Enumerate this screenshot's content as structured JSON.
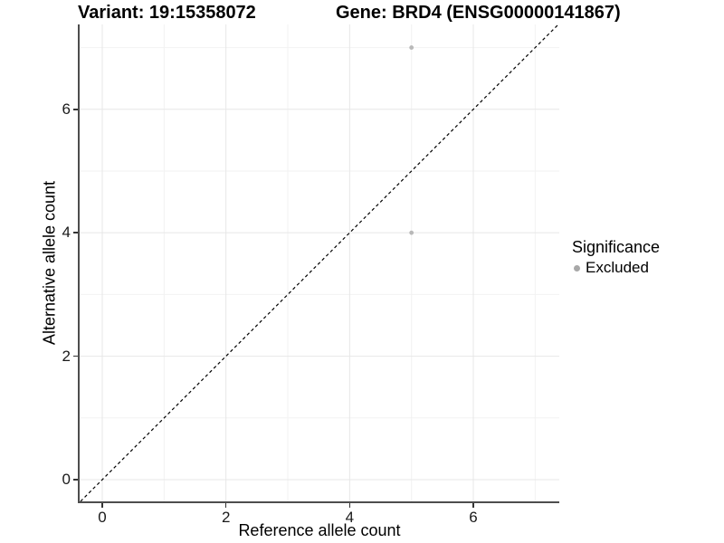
{
  "titles": {
    "variant": "Variant: 19:15358072",
    "gene": "Gene: BRD4 (ENSG00000141867)"
  },
  "chart_data": {
    "type": "scatter",
    "title_left": "Variant: 19:15358072",
    "title_right": "Gene: BRD4 (ENSG00000141867)",
    "xlabel": "Reference allele count",
    "ylabel": "Alternative allele count",
    "xlim": [
      -0.366,
      7.39
    ],
    "ylim": [
      -0.352,
      7.375
    ],
    "x_major_ticks": [
      0,
      2,
      4,
      6
    ],
    "y_major_ticks": [
      0,
      2,
      4,
      6
    ],
    "x_minor_ticks": [
      1,
      3,
      5,
      7
    ],
    "y_minor_ticks": [
      1,
      3,
      5,
      7
    ],
    "grid": true,
    "series": [
      {
        "name": "Excluded",
        "color": "#b9b9b9",
        "point_radius": 2.4,
        "points": [
          {
            "x": 5,
            "y": 7
          },
          {
            "x": 5,
            "y": 4
          }
        ]
      }
    ],
    "reference_line": {
      "type": "identity",
      "equation": "y = x",
      "style": "dashed",
      "color": "#000000"
    },
    "legend": {
      "title": "Significance",
      "position": "right",
      "items": [
        {
          "label": "Excluded",
          "color": "#a8a8a8"
        }
      ]
    }
  },
  "style_colors": {
    "grid_major": "#e7e7e7",
    "grid_minor": "#f2f2f2",
    "axis_line": "#4d4d4d",
    "tick_mark": "#333333",
    "background": "#ffffff"
  }
}
